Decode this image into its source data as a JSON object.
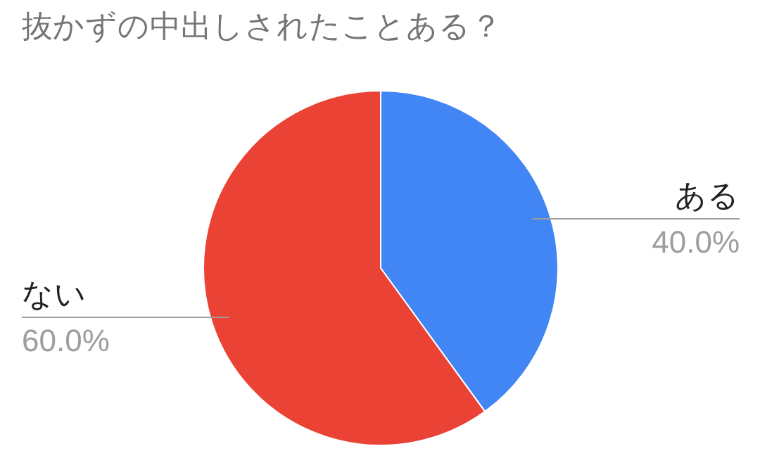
{
  "chart_data": {
    "type": "pie",
    "title": "抜かずの中出しされたことある？",
    "categories": [
      "ある",
      "ない"
    ],
    "values": [
      40,
      60
    ],
    "value_labels": [
      "40.0%",
      "60.0%"
    ],
    "colors": [
      "#4285f4",
      "#ea4335"
    ]
  }
}
